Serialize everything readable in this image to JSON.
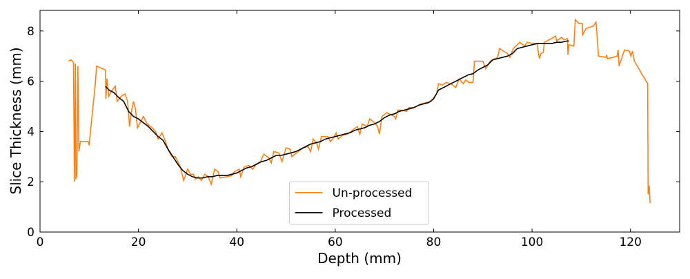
{
  "chart_data": {
    "type": "line",
    "x_label": "Depth (mm)",
    "y_label": "Slice Thickness (mm)",
    "xlim": [
      0,
      130
    ],
    "ylim": [
      0,
      8.82
    ],
    "xticks": [
      0,
      20,
      40,
      60,
      80,
      100,
      120
    ],
    "yticks": [
      0,
      2,
      4,
      6,
      8
    ],
    "grid": false,
    "legend": "lower center",
    "series": [
      {
        "name": "Un-processed",
        "color": "#ff7f0e",
        "x": [
          5.8,
          6.3,
          6.8,
          7.0,
          7.2,
          7.3,
          7.5,
          7.7,
          7.9,
          8.2,
          9.8,
          10.0,
          10.2,
          11.2,
          11.5,
          13.3,
          13.4,
          13.6,
          14,
          14.5,
          15.3,
          15.7,
          16.5,
          17.3,
          17.8,
          18.2,
          18.6,
          19,
          19.4,
          19.8,
          20.5,
          21,
          21.8,
          22.5,
          23.5,
          24,
          24.8,
          25.5,
          26.2,
          26.8,
          27.5,
          28.5,
          29.2,
          30,
          30.6,
          31.2,
          31.6,
          32.2,
          32.8,
          33.5,
          34.2,
          34.8,
          35.5,
          36.2,
          36.6,
          38,
          39,
          39.5,
          40.5,
          40.8,
          41.5,
          42.5,
          43.2,
          44,
          44.8,
          45.5,
          46.5,
          47,
          47.5,
          48.5,
          49.2,
          50,
          50.8,
          51.2,
          52.5,
          53.5,
          54.5,
          55,
          55.5,
          56.2,
          56.6,
          57.2,
          58.5,
          59,
          59.5,
          60.2,
          60.6,
          61.5,
          62.5,
          63.5,
          64.5,
          65,
          65.5,
          66.5,
          67,
          68,
          68.6,
          69,
          69.5,
          70.5,
          72,
          72.3,
          72.7,
          73.5,
          74.5,
          75,
          76,
          76.5,
          77.5,
          78.5,
          79.5,
          80,
          80.6,
          81,
          81.8,
          82.5,
          83.5,
          84.5,
          85.2,
          86,
          86.5,
          87.2,
          88,
          88.3,
          90,
          90.6,
          91.5,
          93,
          93.4,
          95,
          95.5,
          96.2,
          97,
          97.5,
          98.5,
          99,
          100,
          101,
          101.5,
          101.8,
          102.3,
          102.5,
          104,
          104.8,
          105,
          106,
          106.5,
          107.2,
          107.3,
          107.5,
          108.5,
          108.8,
          109.5,
          110.2,
          110.3,
          111,
          112.5,
          113,
          113.3,
          113.5,
          115,
          115.2,
          115.3,
          116.5,
          117.3,
          117.5,
          117.7,
          118.8,
          119.8,
          120.1,
          120.4,
          120.8,
          122,
          123.2,
          123.5,
          123.6,
          123.8,
          124
        ],
        "values": [
          6.8,
          6.85,
          6.75,
          2.0,
          6.7,
          2.1,
          2.3,
          6.6,
          3.2,
          3.6,
          3.6,
          3.45,
          3.9,
          5.8,
          6.6,
          6.45,
          5.3,
          6.1,
          5.4,
          5.6,
          5.8,
          5.2,
          5.4,
          5.5,
          5.2,
          4.2,
          4.8,
          5.2,
          4.9,
          4.15,
          4.4,
          4.6,
          4.3,
          4.2,
          4.0,
          3.7,
          3.95,
          3.6,
          3.2,
          3.0,
          3.0,
          2.6,
          2.05,
          2.5,
          2.3,
          2.3,
          2.1,
          2.2,
          2.05,
          2.3,
          2.2,
          1.9,
          2.5,
          2.4,
          2.15,
          2.2,
          2.25,
          2.4,
          2.5,
          2.2,
          2.6,
          2.65,
          2.5,
          2.7,
          2.8,
          3.1,
          2.95,
          2.75,
          3.2,
          3.15,
          2.8,
          3.35,
          3.3,
          3.0,
          3.2,
          3.35,
          3.4,
          3.2,
          3.7,
          3.55,
          3.3,
          3.8,
          3.8,
          3.6,
          3.7,
          3.95,
          3.7,
          3.85,
          3.9,
          4.05,
          4.2,
          3.9,
          4.3,
          4.2,
          4.5,
          4.35,
          4.2,
          3.9,
          4.6,
          4.75,
          4.6,
          4.5,
          4.85,
          4.85,
          4.8,
          4.95,
          4.95,
          5.0,
          5.1,
          5.15,
          5.2,
          5.35,
          5.5,
          5.9,
          5.85,
          5.95,
          5.9,
          5.75,
          6.1,
          5.9,
          6.05,
          5.95,
          5.95,
          6.8,
          6.8,
          6.5,
          6.8,
          6.95,
          7.3,
          7.1,
          6.95,
          7.3,
          7.45,
          7.55,
          7.4,
          7.55,
          7.5,
          7.5,
          6.9,
          7.1,
          7.15,
          7.55,
          7.7,
          7.8,
          7.6,
          7.75,
          7.65,
          7.7,
          7.05,
          7.45,
          7.4,
          8.45,
          8.3,
          8.3,
          7.85,
          8.1,
          8.2,
          8.35,
          7.6,
          7.0,
          6.95,
          7.05,
          6.9,
          6.95,
          7.0,
          7.25,
          6.6,
          7.25,
          7.2,
          7.0,
          7.2,
          6.8,
          6.4,
          6.0,
          5.9,
          1.5,
          1.85,
          1.15
        ]
      },
      {
        "name": "Processed",
        "color": "#000000",
        "x": [
          13.3,
          14,
          15,
          16,
          17,
          18,
          19,
          20,
          21,
          22,
          23,
          24,
          25,
          26,
          27,
          28,
          29,
          30,
          31,
          32,
          33,
          34,
          35,
          36,
          37,
          38,
          39,
          40,
          41,
          42,
          43,
          44,
          45,
          46,
          47,
          48,
          49,
          50,
          51,
          52,
          53,
          54,
          55,
          56,
          57,
          58,
          59,
          60,
          61,
          62,
          63,
          64,
          65,
          66,
          67,
          68,
          69,
          70,
          71,
          72,
          73,
          74,
          75,
          76,
          77,
          78,
          79,
          80,
          81,
          82,
          83,
          84,
          85,
          86,
          87,
          88,
          89,
          90,
          91,
          92,
          93,
          94,
          95,
          96,
          97,
          98,
          99,
          100,
          101,
          102,
          103,
          104,
          105,
          106,
          107,
          107.5
        ],
        "values": [
          5.8,
          5.65,
          5.55,
          5.35,
          5.2,
          4.8,
          4.6,
          4.5,
          4.35,
          4.2,
          4.0,
          3.8,
          3.65,
          3.3,
          3.0,
          2.7,
          2.45,
          2.3,
          2.2,
          2.15,
          2.15,
          2.2,
          2.2,
          2.25,
          2.25,
          2.25,
          2.3,
          2.35,
          2.45,
          2.55,
          2.6,
          2.7,
          2.8,
          2.85,
          2.95,
          3.05,
          3.05,
          3.1,
          3.15,
          3.2,
          3.3,
          3.4,
          3.5,
          3.55,
          3.6,
          3.7,
          3.75,
          3.8,
          3.85,
          3.9,
          3.95,
          4.05,
          4.1,
          4.15,
          4.25,
          4.3,
          4.4,
          4.55,
          4.65,
          4.7,
          4.8,
          4.85,
          4.9,
          4.95,
          5.05,
          5.1,
          5.15,
          5.3,
          5.65,
          5.75,
          5.85,
          5.95,
          6.05,
          6.15,
          6.25,
          6.3,
          6.45,
          6.55,
          6.65,
          6.85,
          6.9,
          6.95,
          7.0,
          7.1,
          7.3,
          7.35,
          7.4,
          7.45,
          7.5,
          7.5,
          7.5,
          7.5,
          7.55,
          7.55,
          7.6,
          7.6
        ]
      }
    ]
  }
}
